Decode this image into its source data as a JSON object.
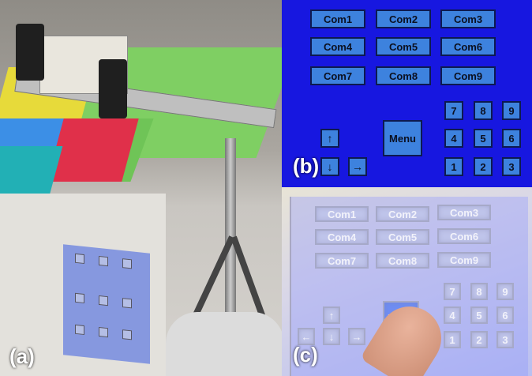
{
  "labels": {
    "a": "(a)",
    "b": "(b)",
    "c": "(c)"
  },
  "gui": {
    "com_buttons": [
      "Com1",
      "Com2",
      "Com3",
      "Com4",
      "Com5",
      "Com6",
      "Com7",
      "Com8",
      "Com9"
    ],
    "menu_label": "Menu",
    "keypad": [
      "7",
      "8",
      "9",
      "4",
      "5",
      "6",
      "1",
      "2",
      "3"
    ],
    "arrows": {
      "up": "↑",
      "down": "↓",
      "right": "→",
      "left": "←"
    }
  },
  "colors": {
    "gui_background": "#1717e0",
    "gui_button": "#3d82de",
    "projected_button": "#bfc4ea"
  }
}
